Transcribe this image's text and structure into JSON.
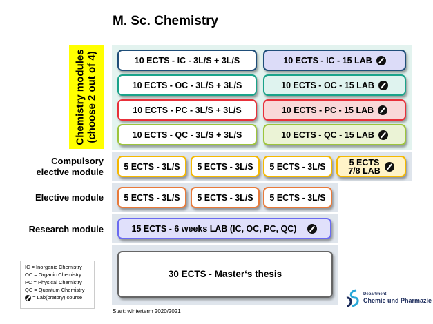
{
  "title": "M. Sc. Chemistry",
  "chemistry": {
    "label_line1": "Chemistry modules",
    "label_line2": "(choose 2 out of 4)",
    "rows": [
      {
        "left": "10 ECTS - IC - 3L/S + 3L/S",
        "right": "10 ECTS - IC - 15 LAB",
        "border": "#1f4e79",
        "fill": "#dcdcf8"
      },
      {
        "left": "10 ECTS - OC - 3L/S + 3L/S",
        "right": "10 ECTS - OC - 15 LAB",
        "border": "#1aa38a",
        "fill": "#dff3ef"
      },
      {
        "left": "10 ECTS - PC - 3L/S + 3L/S",
        "right": "10 ECTS - PC - 15 LAB",
        "border": "#e8303a",
        "fill": "#f9d8d8"
      },
      {
        "left": "10 ECTS - QC - 3L/S + 3L/S",
        "right": "10 ECTS - QC - 15 LAB",
        "border": "#9dc53c",
        "fill": "#ebf3d6"
      }
    ]
  },
  "compulsory": {
    "label_line1": "Compulsory",
    "label_line2": "elective module",
    "boxes": [
      "5 ECTS - 3L/S",
      "5 ECTS - 3L/S",
      "5 ECTS - 3L/S"
    ],
    "lab_line1": "5 ECTS",
    "lab_line2": "7/8 LAB",
    "border": "#f5b800",
    "fill": "#fff3c8"
  },
  "elective": {
    "label": "Elective module",
    "boxes": [
      "5 ECTS - 3L/S",
      "5 ECTS - 3L/S",
      "5 ECTS - 3L/S"
    ],
    "border": "#e87a3a"
  },
  "research": {
    "label": "Research module",
    "box": "15 ECTS - 6 weeks LAB (IC, OC, PC, QC)",
    "border": "#6a6af0",
    "fill": "#e0e0fb"
  },
  "thesis": {
    "box": "30 ECTS - Master‘s thesis"
  },
  "legend": [
    "IC  =  Inorganic Chemistry",
    "OC  =  Organic Chemistry",
    "PC  =  Physical Chemistry",
    "QC  =  Quantum Chemistry",
    "= Lab(oratory) course"
  ],
  "start": "Start: winterterm 2020/2021",
  "logo": {
    "line1": "Department",
    "line2": "Chemie und Pharmazie"
  }
}
